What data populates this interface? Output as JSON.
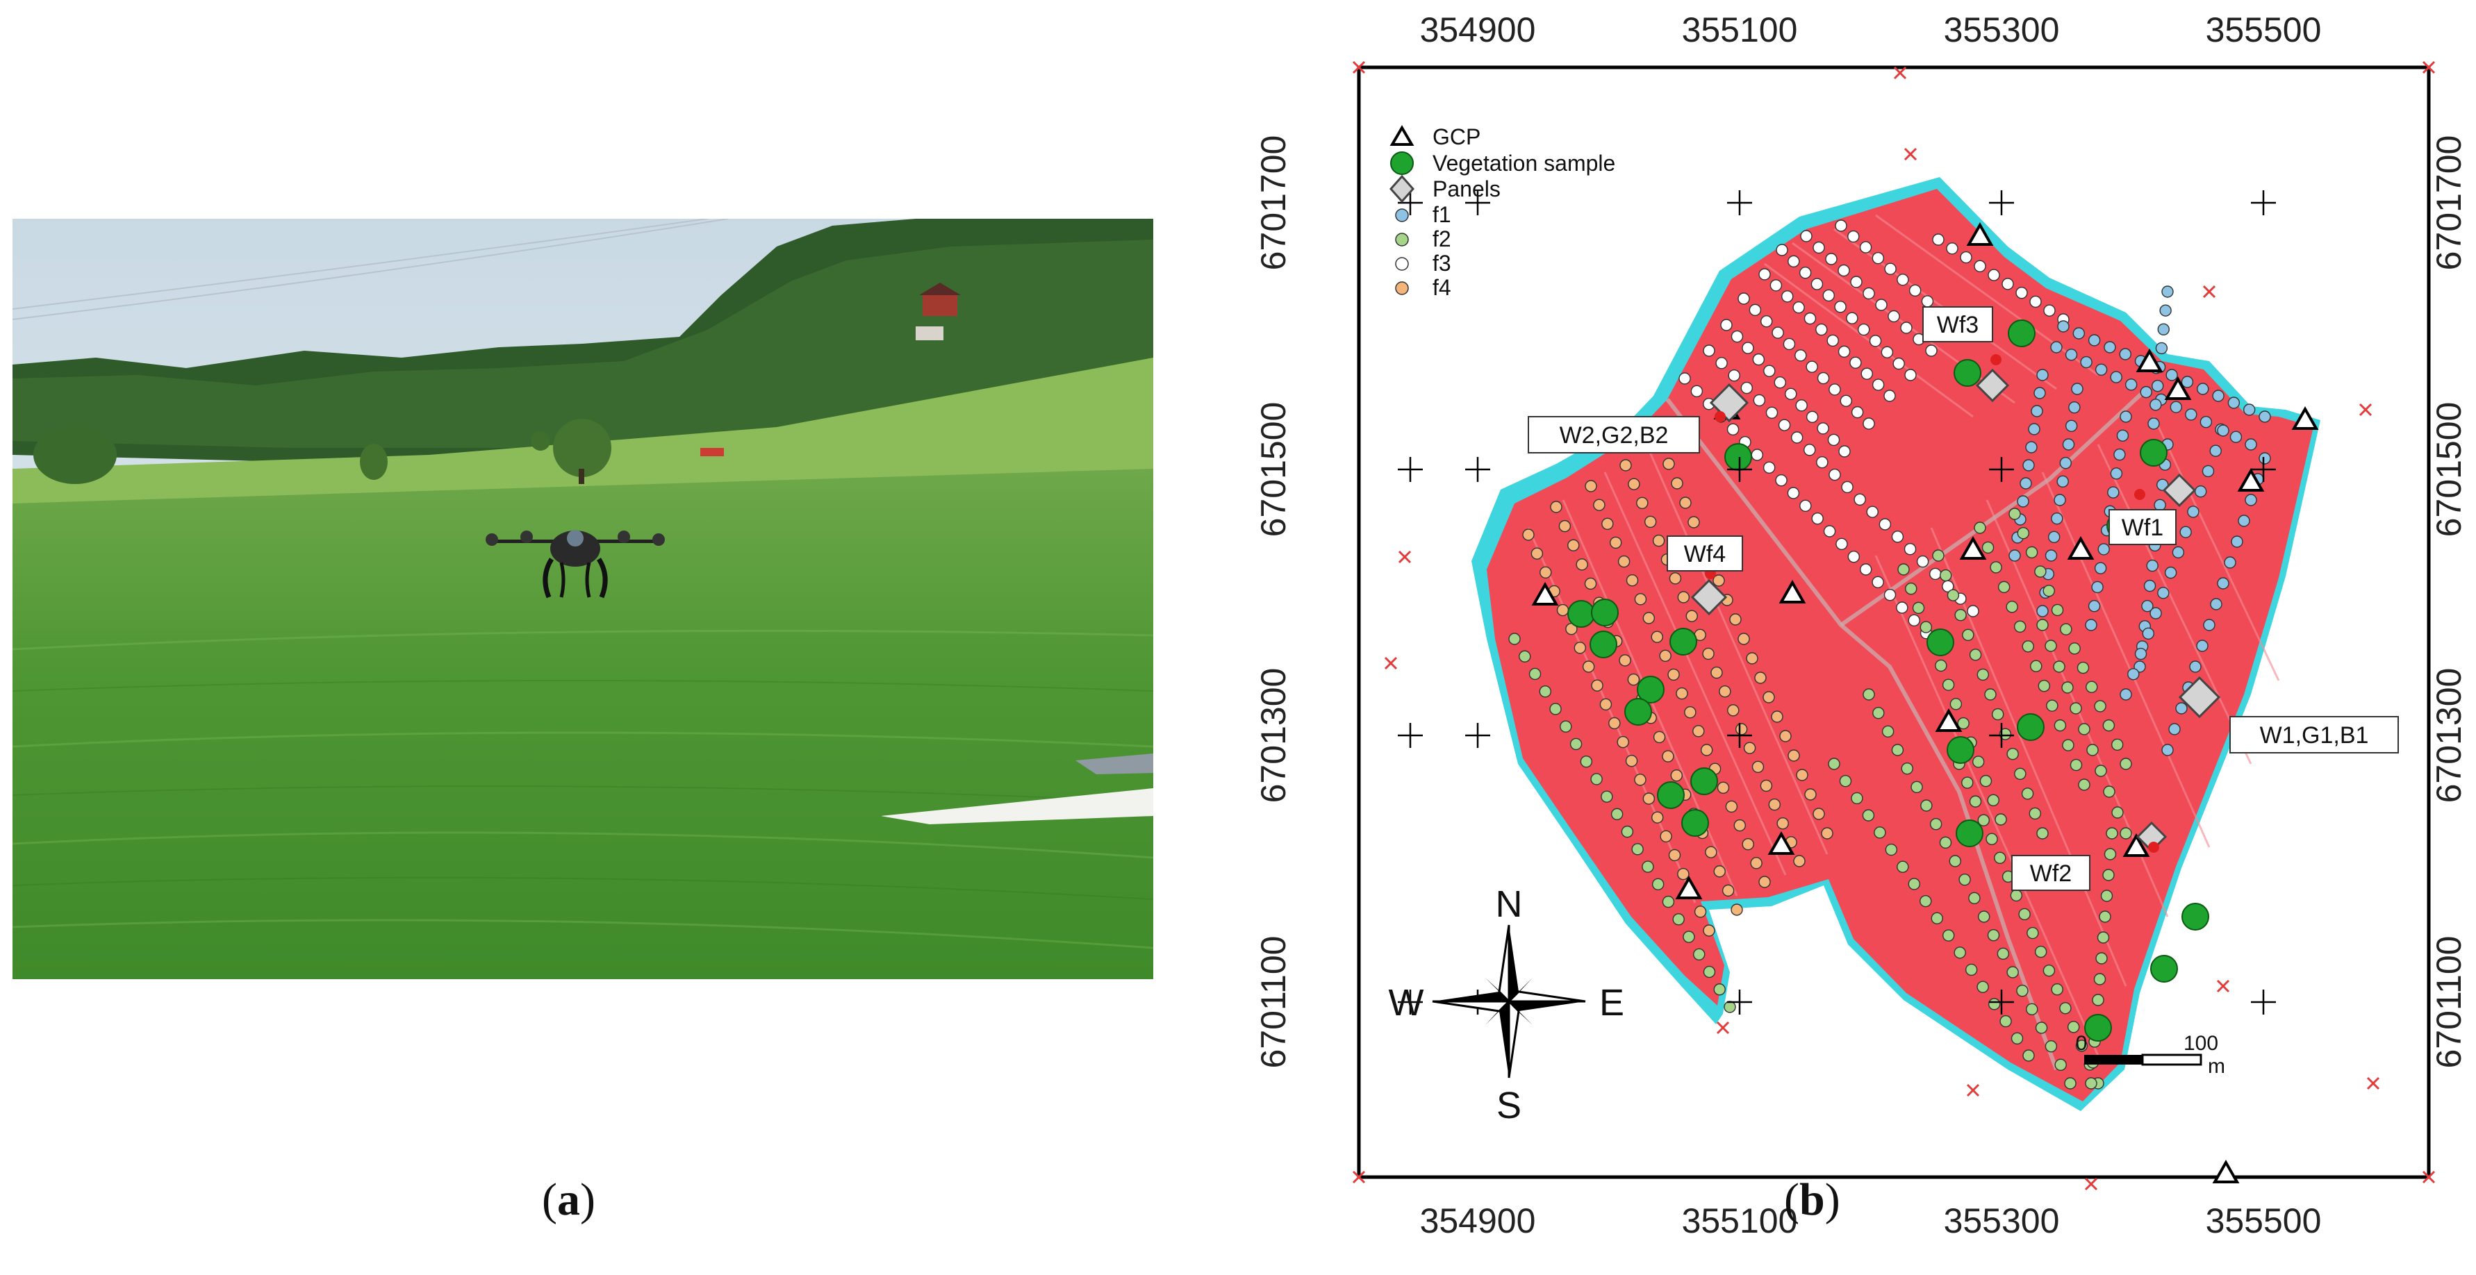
{
  "captions": {
    "a": "a",
    "b": "b"
  },
  "map": {
    "x_ticks": [
      "354900",
      "355100",
      "355300",
      "355500"
    ],
    "y_ticks": [
      "6701700",
      "6701500",
      "6701300",
      "6701100"
    ],
    "legend": [
      {
        "symbol": "triangle",
        "label": "GCP"
      },
      {
        "symbol": "circle-green",
        "label": "Vegetation sample"
      },
      {
        "symbol": "diamond",
        "label": "Panels"
      },
      {
        "symbol": "dot",
        "color": "#8ec3e3",
        "label": "f1"
      },
      {
        "symbol": "dot",
        "color": "#a6d58a",
        "label": "f2"
      },
      {
        "symbol": "dot",
        "color": "#ffffff",
        "label": "f3"
      },
      {
        "symbol": "dot",
        "color": "#f4b57a",
        "label": "f4"
      }
    ],
    "labels": {
      "wf3": "Wf3",
      "w2": "W2,G2,B2",
      "wf1": "Wf1",
      "wf4": "Wf4",
      "w1": "W1,G1,B1",
      "wf2": "Wf2"
    },
    "compass": {
      "n": "N",
      "s": "S",
      "e": "E",
      "w": "W"
    },
    "scale": {
      "start": "0",
      "end": "100",
      "unit": "m"
    },
    "colors": {
      "field": "#f04a57",
      "water": "#35e3e7",
      "sample": "#1ea32f"
    }
  }
}
